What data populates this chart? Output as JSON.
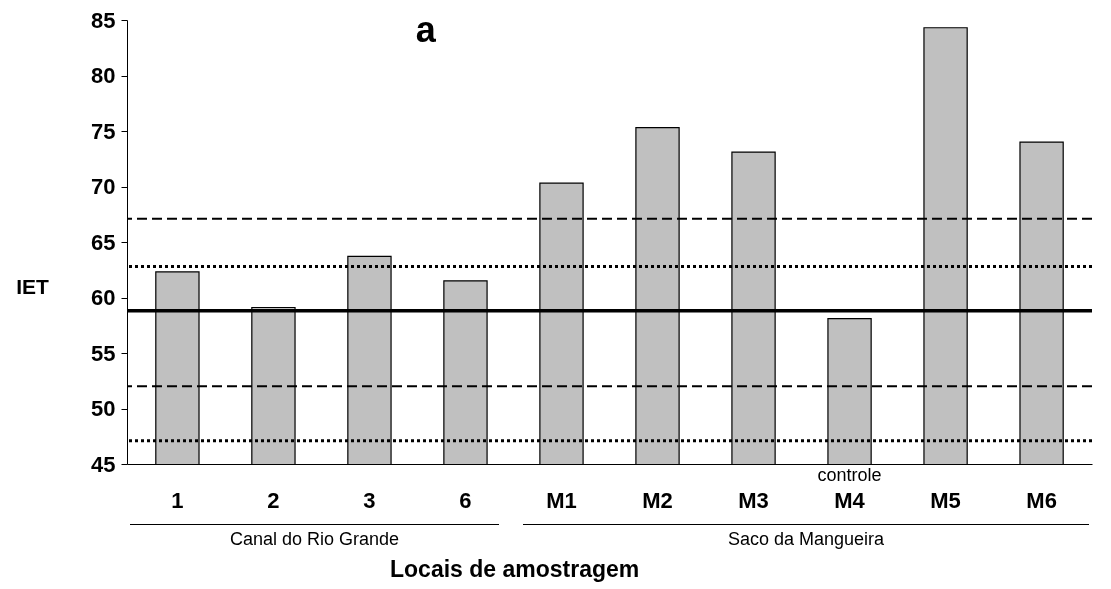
{
  "chart_data": {
    "type": "bar",
    "title": "a",
    "xlabel": "Locais de amostragem",
    "ylabel": "IET",
    "categories": [
      "1",
      "2",
      "3",
      "6",
      "M1",
      "M2",
      "M3",
      "M4",
      "M5",
      "M6"
    ],
    "values": [
      62.3,
      59.1,
      63.7,
      61.5,
      70.3,
      75.3,
      73.1,
      58.1,
      84.3,
      74.0
    ],
    "color": "#c0c0c0",
    "ylim": [
      45,
      85
    ],
    "yticks": [
      45,
      50,
      55,
      60,
      65,
      70,
      75,
      80,
      85
    ],
    "grid": false,
    "ref_lines": [
      {
        "axis": "y",
        "value": 67.1,
        "line_style": "dashed"
      },
      {
        "axis": "y",
        "value": 62.8,
        "line_style": "dotted"
      },
      {
        "axis": "y",
        "value": 58.8,
        "line_style": "solid"
      },
      {
        "axis": "y",
        "value": 52.0,
        "line_style": "dashed"
      },
      {
        "axis": "y",
        "value": 47.1,
        "line_style": "dotted"
      }
    ],
    "annotations": [
      "controle",
      "Canal do Rio Grande",
      "Saco da Mangueira"
    ]
  }
}
